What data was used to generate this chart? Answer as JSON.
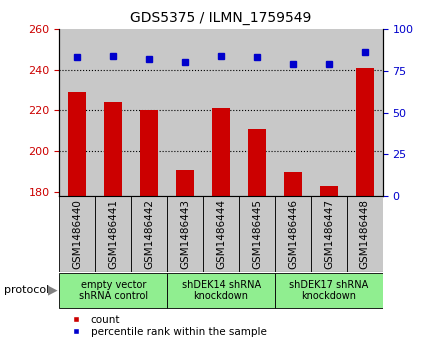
{
  "title": "GDS5375 / ILMN_1759549",
  "samples": [
    "GSM1486440",
    "GSM1486441",
    "GSM1486442",
    "GSM1486443",
    "GSM1486444",
    "GSM1486445",
    "GSM1486446",
    "GSM1486447",
    "GSM1486448"
  ],
  "counts": [
    229,
    224,
    220,
    191,
    221,
    211,
    190,
    183,
    241
  ],
  "percentile_ranks": [
    83,
    84,
    82,
    80,
    84,
    83,
    79,
    79,
    86
  ],
  "ylim_left": [
    178,
    260
  ],
  "ylim_right": [
    0,
    100
  ],
  "yticks_left": [
    180,
    200,
    220,
    240,
    260
  ],
  "yticks_right": [
    0,
    25,
    50,
    75,
    100
  ],
  "protocol_groups": [
    {
      "label": "empty vector\nshRNA control",
      "start": 0,
      "end": 3,
      "color": "#90ee90"
    },
    {
      "label": "shDEK14 shRNA\nknockdown",
      "start": 3,
      "end": 6,
      "color": "#90ee90"
    },
    {
      "label": "shDEK17 shRNA\nknockdown",
      "start": 6,
      "end": 9,
      "color": "#90ee90"
    }
  ],
  "bar_color": "#cc0000",
  "scatter_color": "#0000cc",
  "cell_bg_color": "#c8c8c8",
  "plot_bg_color": "#ffffff",
  "bar_bottom": 178,
  "protocol_label": "protocol",
  "legend_count_label": "count",
  "legend_percentile_label": "percentile rank within the sample",
  "title_fontsize": 10,
  "axis_tick_fontsize": 8,
  "sample_label_fontsize": 7.5,
  "protocol_fontsize": 7,
  "legend_fontsize": 7.5
}
